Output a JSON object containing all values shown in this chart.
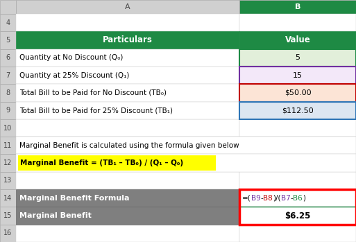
{
  "fig_width": 5.13,
  "fig_height": 3.49,
  "dpi": 100,
  "bg_color": "#e8e8e8",
  "col_header_bg": "#d0d0d0",
  "row_num_bg": "#d0d0d0",
  "header_row": {
    "col_a_text": "Particulars",
    "col_b_text": "Value",
    "bg_color": "#1e8a44",
    "text_color": "#ffffff"
  },
  "data_rows": [
    {
      "row": 6,
      "col_a": "Quantity at No Discount (Q₀)",
      "col_b": "5",
      "col_b_bg": "#e2efda",
      "border_color": "#1e8a44"
    },
    {
      "row": 7,
      "col_a": "Quantity at 25% Discount (Q₁)",
      "col_b": "15",
      "col_b_bg": "#f3e8f9",
      "border_color": "#7030a0"
    },
    {
      "row": 8,
      "col_a": "Total Bill to be Paid for No Discount (TB₀)",
      "col_b": "$50.00",
      "col_b_bg": "#fce4d6",
      "border_color": "#c00000"
    },
    {
      "row": 9,
      "col_a": "Total Bill to be Paid for 25% Discount (TB₁)",
      "col_b": "$112.50",
      "col_b_bg": "#dce6f1",
      "border_color": "#2e75b6"
    }
  ],
  "text_row11": "Marginal Benefit is calculated using the formula given below",
  "formula_row12_text": "Marginal Benefit = (TB₁ – TB₀) / (Q₁ – Q₀)",
  "formula_row12_bg": "#ffff00",
  "formula_parts": [
    {
      "text": "=(",
      "color": "#000000"
    },
    {
      "text": "B9",
      "color": "#7030a0"
    },
    {
      "text": "-",
      "color": "#000000"
    },
    {
      "text": "B8",
      "color": "#c00000"
    },
    {
      "text": ")/(",
      "color": "#000000"
    },
    {
      "text": "B7",
      "color": "#7030a0"
    },
    {
      "text": "-",
      "color": "#000000"
    },
    {
      "text": "B6",
      "color": "#1e8a44"
    },
    {
      "text": ")",
      "color": "#000000"
    }
  ],
  "result_row14_a": "Marginal Benefit Formula",
  "result_row15_a": "Marginal Benefit",
  "result_row15_b": "$6.25",
  "result_bg": "#7f7f7f",
  "result_text_color": "#ffffff",
  "red_border_color": "#ff0000",
  "green_divider": "#1e8a44",
  "col_a_label": "A",
  "col_b_label": "B"
}
